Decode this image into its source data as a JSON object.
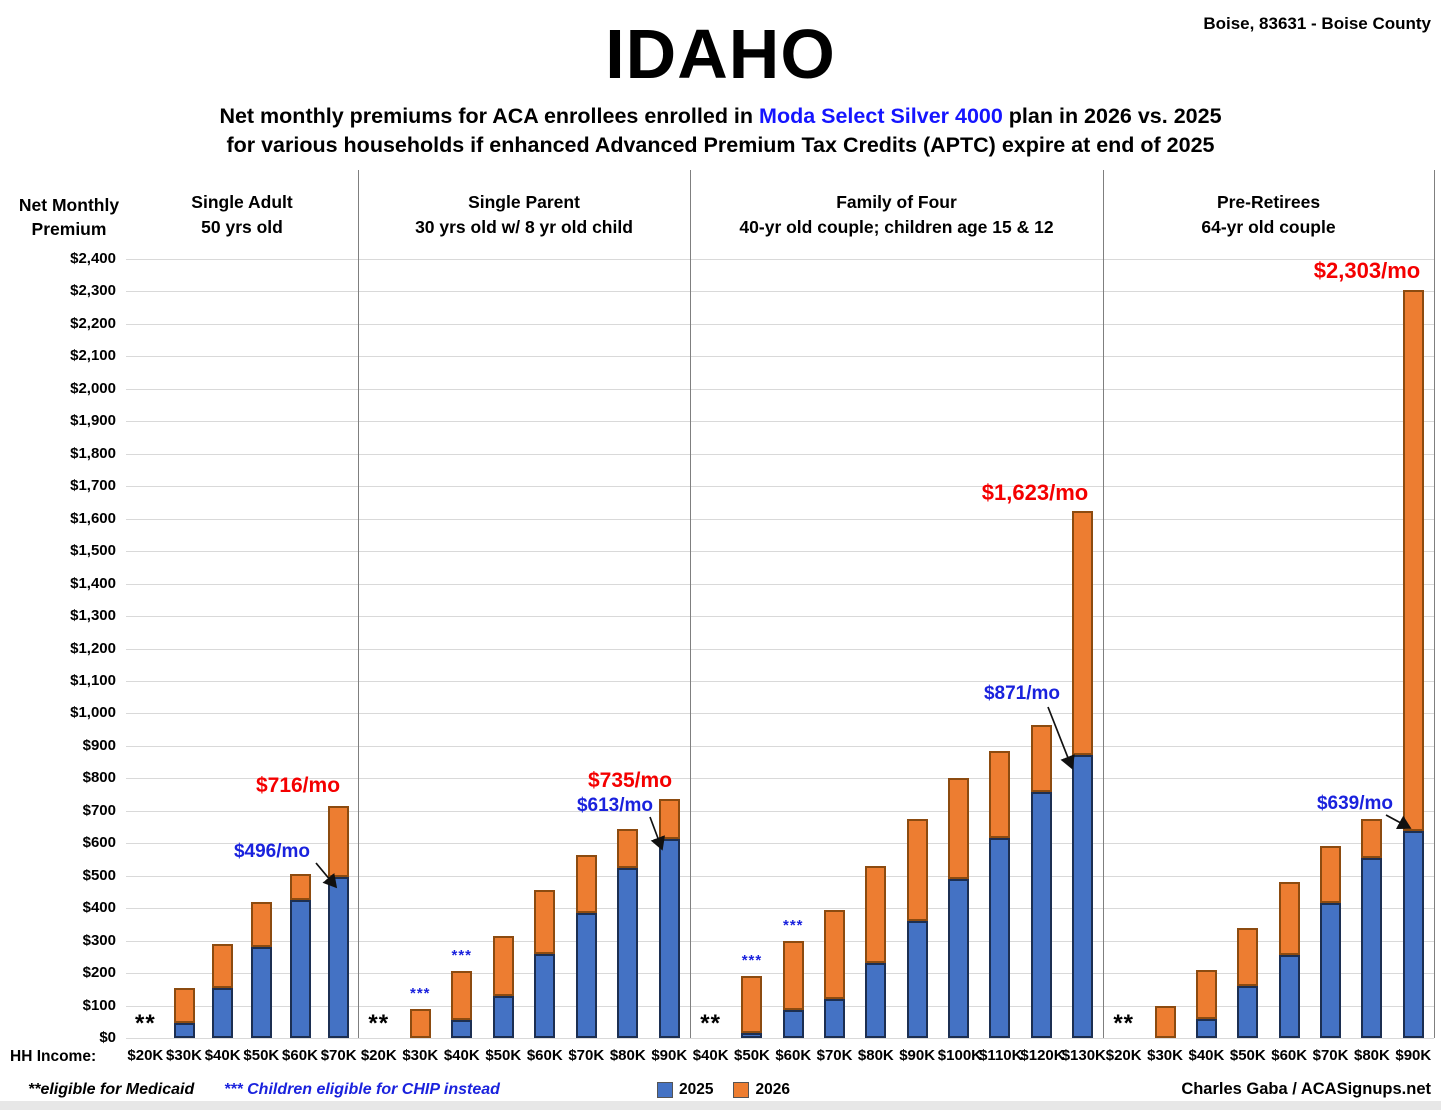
{
  "header": {
    "location": "Boise, 83631 - Boise County",
    "title": "IDAHO",
    "subtitle_pre": "Net monthly premiums for ACA enrollees enrolled in ",
    "subtitle_plan": "Moda Select Silver 4000",
    "subtitle_post": " plan in 2026 vs. 2025",
    "subtitle_line2": "for various households if enhanced Advanced Premium Tax Credits (APTC) expire at end of 2025"
  },
  "axis": {
    "title_line1": "Net Monthly",
    "title_line2": "Premium",
    "hh_income_label": "HH Income:"
  },
  "legend": {
    "items": [
      {
        "label": "2025",
        "color": "#4472C4"
      },
      {
        "label": "2026",
        "color": "#ED7D31"
      }
    ]
  },
  "footer": {
    "medicaid_note": "**eligible for Medicaid",
    "chip_note": "*** Children eligible for CHIP instead",
    "credit": "Charles Gaba / ACASignups.net"
  },
  "colors": {
    "bar_2025": "#4472C4",
    "bar_2026": "#ED7D31",
    "annotation_blue": "#1a22dd",
    "annotation_red": "#f40000",
    "plan_name_blue": "#1515ff"
  },
  "chart_data": {
    "type": "bar",
    "stacked": true,
    "grid": true,
    "ylim": [
      0,
      2400
    ],
    "ytick_step": 100,
    "series_names": [
      "2025",
      "2026"
    ],
    "panels": [
      {
        "title_line1": "Single Adult",
        "title_line2": "50 yrs old",
        "categories": [
          "$20K",
          "$30K",
          "$40K",
          "$50K",
          "$60K",
          "$70K"
        ],
        "values_2025": [
          0,
          45,
          155,
          280,
          425,
          496
        ],
        "values_2026": [
          0,
          155,
          290,
          420,
          505,
          716
        ],
        "notes": [
          "**",
          "",
          "",
          "",
          "",
          ""
        ],
        "annotations": [
          {
            "text": "$496/mo",
            "kind": "blue",
            "category": "$70K",
            "value": 496
          },
          {
            "text": "$716/mo",
            "kind": "red",
            "category": "$70K",
            "value": 716
          }
        ]
      },
      {
        "title_line1": "Single Parent",
        "title_line2": "30 yrs old w/ 8 yr old child",
        "categories": [
          "$20K",
          "$30K",
          "$40K",
          "$50K",
          "$60K",
          "$70K",
          "$80K",
          "$90K"
        ],
        "values_2025": [
          0,
          0,
          55,
          130,
          260,
          385,
          525,
          613
        ],
        "values_2026": [
          0,
          90,
          205,
          315,
          455,
          565,
          645,
          735
        ],
        "notes": [
          "**",
          "***",
          "***",
          "",
          "",
          "",
          "",
          ""
        ],
        "annotations": [
          {
            "text": "$613/mo",
            "kind": "blue",
            "category": "$90K",
            "value": 613
          },
          {
            "text": "$735/mo",
            "kind": "red",
            "category": "$90K",
            "value": 735
          }
        ]
      },
      {
        "title_line1": "Family of Four",
        "title_line2": "40-yr old couple; children age 15 & 12",
        "categories": [
          "$40K",
          "$50K",
          "$60K",
          "$70K",
          "$80K",
          "$90K",
          "$100K",
          "$110K",
          "$120K",
          "$130K"
        ],
        "values_2025": [
          0,
          15,
          85,
          120,
          230,
          360,
          490,
          615,
          757,
          871
        ],
        "values_2026": [
          0,
          190,
          300,
          395,
          530,
          675,
          800,
          885,
          965,
          1623
        ],
        "notes": [
          "**",
          "***",
          "***",
          "",
          "",
          "",
          "",
          "",
          "",
          ""
        ],
        "annotations": [
          {
            "text": "$871/mo",
            "kind": "blue",
            "category": "$130K",
            "value": 871
          },
          {
            "text": "$1,623/mo",
            "kind": "red",
            "category": "$130K",
            "value": 1623
          }
        ]
      },
      {
        "title_line1": "Pre-Retirees",
        "title_line2": "64-yr old couple",
        "categories": [
          "$20K",
          "$30K",
          "$40K",
          "$50K",
          "$60K",
          "$70K",
          "$80K",
          "$90K"
        ],
        "values_2025": [
          0,
          0,
          60,
          160,
          255,
          415,
          555,
          639
        ],
        "values_2026": [
          0,
          100,
          210,
          340,
          480,
          590,
          675,
          2303
        ],
        "notes": [
          "**",
          "",
          "",
          "",
          "",
          "",
          "",
          ""
        ],
        "annotations": [
          {
            "text": "$639/mo",
            "kind": "blue",
            "category": "$90K",
            "value": 639
          },
          {
            "text": "$2,303/mo",
            "kind": "red",
            "category": "$90K",
            "value": 2303
          }
        ]
      }
    ]
  }
}
